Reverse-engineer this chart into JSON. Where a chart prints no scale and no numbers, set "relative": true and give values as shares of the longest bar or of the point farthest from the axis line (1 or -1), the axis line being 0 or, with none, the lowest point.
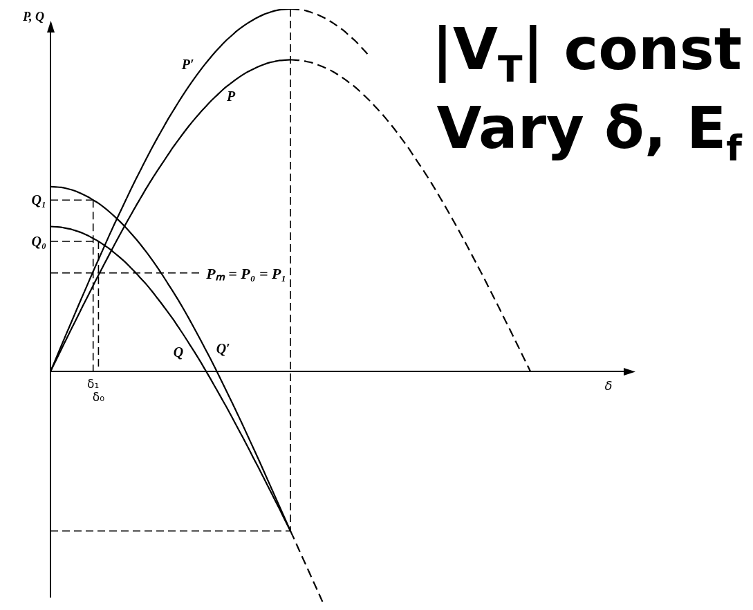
{
  "chart_data": {
    "type": "line",
    "relative": true,
    "xlabel": "δ",
    "ylabel": "P, Q",
    "tick_labels": "x",
    "categories": [
      null,
      null,
      null,
      null,
      null,
      null,
      null,
      null,
      "δ₁",
      "δ₀",
      null,
      null,
      null,
      null,
      null,
      null,
      null,
      null,
      null,
      null,
      null,
      null,
      null,
      null,
      null,
      null,
      null,
      null,
      null,
      null,
      null,
      null,
      null,
      null,
      null,
      null,
      null,
      null,
      null,
      null,
      null,
      null,
      null,
      null,
      null,
      null,
      null,
      null,
      null,
      null,
      null,
      null,
      null,
      null,
      null,
      null,
      null,
      null,
      null,
      null,
      null,
      null,
      null,
      null,
      null,
      null,
      null,
      null,
      null,
      null,
      null,
      null,
      null,
      null,
      null,
      null,
      null,
      null,
      null,
      null,
      null,
      null,
      null,
      null,
      null,
      null,
      null,
      null,
      null,
      null,
      null,
      null,
      null,
      null,
      null,
      null,
      null,
      null,
      null,
      null,
      null,
      null,
      null,
      null,
      null,
      null,
      null,
      null,
      null
    ],
    "series": [
      {
        "name": "P′",
        "color": "#000000",
        "line_style": "solid",
        "values": [
          0,
          0.035,
          0.07,
          0.105,
          0.139,
          0.174,
          0.208,
          0.242,
          0.276,
          0.309,
          0.342,
          0.375,
          0.407,
          0.438,
          0.469,
          0.5,
          0.53,
          0.559,
          0.588,
          0.616,
          0.643,
          0.669,
          0.695,
          0.719,
          0.743,
          0.766,
          0.788,
          0.809,
          0.829,
          0.848,
          0.866,
          0.883,
          0.899,
          0.914,
          0.927,
          0.94,
          0.951,
          0.961,
          0.97,
          0.978,
          0.985,
          0.99,
          0.995,
          0.998,
          0.999,
          1,
          null,
          null,
          null,
          null,
          null,
          null,
          null,
          null,
          null,
          null,
          null,
          null,
          null,
          null,
          null,
          null,
          null,
          null,
          null,
          null,
          null,
          null,
          null,
          null,
          null,
          null,
          null,
          null,
          null,
          null,
          null,
          null,
          null,
          null,
          null,
          null,
          null,
          null,
          null,
          null,
          null,
          null,
          null,
          null,
          null,
          null,
          null,
          null,
          null,
          null,
          null,
          null,
          null,
          null,
          null,
          null,
          null,
          null,
          null,
          null,
          null,
          null,
          null
        ]
      },
      {
        "color": "#000000",
        "line_style": "dashed",
        "values": [
          null,
          null,
          null,
          null,
          null,
          null,
          null,
          null,
          null,
          null,
          null,
          null,
          null,
          null,
          null,
          null,
          null,
          null,
          null,
          null,
          null,
          null,
          null,
          null,
          null,
          null,
          null,
          null,
          null,
          null,
          null,
          null,
          null,
          null,
          null,
          null,
          null,
          null,
          null,
          null,
          null,
          null,
          null,
          null,
          null,
          1,
          0.999,
          0.998,
          0.995,
          0.99,
          0.985,
          0.978,
          0.97,
          0.961,
          0.951,
          0.94,
          0.927,
          0.914,
          0.899,
          0.883,
          0.866,
          null,
          null,
          null,
          null,
          null,
          null,
          null,
          null,
          null,
          null,
          null,
          null,
          null,
          null,
          null,
          null,
          null,
          null,
          null,
          null,
          null,
          null,
          null,
          null,
          null,
          null,
          null,
          null,
          null,
          null,
          null,
          null,
          null,
          null,
          null,
          null,
          null,
          null,
          null,
          null,
          null,
          null,
          null,
          null,
          null,
          null,
          null,
          null
        ]
      },
      {
        "name": "P",
        "color": "#000000",
        "line_style": "solid",
        "values": [
          0,
          0.03,
          0.06,
          0.09,
          0.12,
          0.149,
          0.179,
          0.208,
          0.237,
          0.266,
          0.294,
          0.322,
          0.35,
          0.377,
          0.404,
          0.43,
          0.456,
          0.481,
          0.506,
          0.53,
          0.553,
          0.575,
          0.597,
          0.619,
          0.639,
          0.659,
          0.678,
          0.696,
          0.713,
          0.729,
          0.745,
          0.759,
          0.773,
          0.786,
          0.797,
          0.808,
          0.818,
          0.827,
          0.834,
          0.841,
          0.847,
          0.852,
          0.855,
          0.858,
          0.859,
          0.86,
          null,
          null,
          null,
          null,
          null,
          null,
          null,
          null,
          null,
          null,
          null,
          null,
          null,
          null,
          null,
          null,
          null,
          null,
          null,
          null,
          null,
          null,
          null,
          null,
          null,
          null,
          null,
          null,
          null,
          null,
          null,
          null,
          null,
          null,
          null,
          null,
          null,
          null,
          null,
          null,
          null,
          null,
          null,
          null,
          null,
          null,
          null,
          null,
          null,
          null,
          null,
          null,
          null,
          null,
          null,
          null,
          null,
          null,
          null,
          null,
          null,
          null,
          null
        ]
      },
      {
        "color": "#000000",
        "line_style": "dashed",
        "values": [
          null,
          null,
          null,
          null,
          null,
          null,
          null,
          null,
          null,
          null,
          null,
          null,
          null,
          null,
          null,
          null,
          null,
          null,
          null,
          null,
          null,
          null,
          null,
          null,
          null,
          null,
          null,
          null,
          null,
          null,
          null,
          null,
          null,
          null,
          null,
          null,
          null,
          null,
          null,
          null,
          null,
          null,
          null,
          null,
          null,
          0.86,
          0.859,
          0.858,
          0.855,
          0.852,
          0.847,
          0.841,
          0.834,
          0.827,
          0.818,
          0.808,
          0.797,
          0.786,
          0.773,
          0.759,
          0.745,
          0.729,
          0.713,
          0.696,
          0.678,
          0.659,
          0.639,
          0.619,
          0.597,
          0.575,
          0.553,
          0.53,
          0.506,
          0.481,
          0.456,
          0.43,
          0.404,
          0.377,
          0.35,
          0.322,
          0.294,
          0.266,
          0.237,
          0.208,
          0.179,
          0.149,
          0.12,
          0.09,
          0.06,
          0.03,
          0,
          null,
          null,
          null,
          null,
          null,
          null,
          null,
          null,
          null,
          null,
          null,
          null,
          null,
          null,
          null,
          null,
          null,
          null
        ]
      },
      {
        "name": "Q′",
        "color": "#000000",
        "line_style": "solid",
        "values": [
          0.51,
          0.509,
          0.508,
          0.505,
          0.501,
          0.496,
          0.489,
          0.482,
          0.473,
          0.464,
          0.453,
          0.441,
          0.428,
          0.414,
          0.399,
          0.383,
          0.366,
          0.348,
          0.329,
          0.309,
          0.288,
          0.266,
          0.243,
          0.22,
          0.196,
          0.171,
          0.145,
          0.118,
          0.091,
          0.063,
          0.035,
          0.006,
          -0.024,
          -0.054,
          -0.084,
          -0.115,
          -0.146,
          -0.178,
          -0.21,
          -0.242,
          -0.275,
          -0.308,
          -0.341,
          -0.374,
          -0.407,
          -0.44,
          null,
          null,
          null,
          null,
          null,
          null,
          null,
          null,
          null,
          null,
          null,
          null,
          null,
          null,
          null,
          null,
          null,
          null,
          null,
          null,
          null,
          null,
          null,
          null,
          null,
          null,
          null,
          null,
          null,
          null,
          null,
          null,
          null,
          null,
          null,
          null,
          null,
          null,
          null,
          null,
          null,
          null,
          null,
          null,
          null,
          null,
          null,
          null,
          null,
          null,
          null,
          null,
          null,
          null,
          null,
          null,
          null,
          null,
          null,
          null,
          null,
          null,
          null
        ]
      },
      {
        "name": "Q",
        "color": "#000000",
        "line_style": "solid",
        "values": [
          0.4,
          0.399,
          0.398,
          0.395,
          0.392,
          0.387,
          0.382,
          0.375,
          0.367,
          0.359,
          0.349,
          0.339,
          0.327,
          0.315,
          0.302,
          0.287,
          0.272,
          0.256,
          0.24,
          0.222,
          0.203,
          0.184,
          0.164,
          0.144,
          0.122,
          0.1,
          0.077,
          0.054,
          0.03,
          0.005,
          -0.02,
          -0.046,
          -0.072,
          -0.098,
          -0.125,
          -0.153,
          -0.18,
          -0.208,
          -0.237,
          -0.265,
          -0.294,
          -0.323,
          -0.352,
          -0.381,
          -0.411,
          -0.44,
          null,
          null,
          null,
          null,
          null,
          null,
          null,
          null,
          null,
          null,
          null,
          null,
          null,
          null,
          null,
          null,
          null,
          null,
          null,
          null,
          null,
          null,
          null,
          null,
          null,
          null,
          null,
          null,
          null,
          null,
          null,
          null,
          null,
          null,
          null,
          null,
          null,
          null,
          null,
          null,
          null,
          null,
          null,
          null,
          null,
          null,
          null,
          null,
          null,
          null,
          null,
          null,
          null,
          null,
          null,
          null,
          null,
          null,
          null,
          null,
          null,
          null,
          null
        ]
      },
      {
        "color": "#000000",
        "line_style": "dashed",
        "values": [
          null,
          null,
          null,
          null,
          null,
          null,
          null,
          null,
          null,
          null,
          null,
          null,
          null,
          null,
          null,
          null,
          null,
          null,
          null,
          null,
          null,
          null,
          null,
          null,
          null,
          null,
          null,
          null,
          null,
          null,
          null,
          null,
          null,
          null,
          null,
          null,
          null,
          null,
          null,
          null,
          null,
          null,
          null,
          null,
          null,
          -0.44,
          -0.472,
          -0.505,
          -0.537,
          -0.57,
          -0.602,
          -0.635,
          null,
          null,
          null,
          null,
          null,
          null,
          null,
          null,
          null,
          null,
          null,
          null,
          null,
          null,
          null,
          null,
          null,
          null,
          null,
          null,
          null,
          null,
          null,
          null,
          null,
          null,
          null,
          null,
          null,
          null,
          null,
          null,
          null,
          null,
          null,
          null,
          null,
          null,
          null,
          null,
          null,
          null,
          null,
          null,
          null,
          null,
          null,
          null,
          null,
          null,
          null,
          null,
          null,
          null,
          null,
          null,
          null
        ]
      }
    ],
    "ref_lines": [
      {
        "axis": "y",
        "value": 0.272,
        "label": "Pₘ = P₀ = P₁",
        "line_style": "dashed"
      },
      {
        "axis": "y",
        "value": 0.473,
        "label": "Q₁",
        "line_style": "dashed"
      },
      {
        "axis": "y",
        "value": 0.359,
        "label": "Q₀",
        "line_style": "dashed"
      },
      {
        "axis": "y",
        "value": -0.44,
        "line_style": "dashed"
      },
      {
        "axis": "x",
        "value": "δ₁",
        "line_style": "dashed"
      },
      {
        "axis": "x",
        "value": "δ₀",
        "line_style": "dashed"
      }
    ],
    "annotations": [
      "|V$_{T}$| const",
      "Vary δ, E$_{f}$"
    ]
  }
}
